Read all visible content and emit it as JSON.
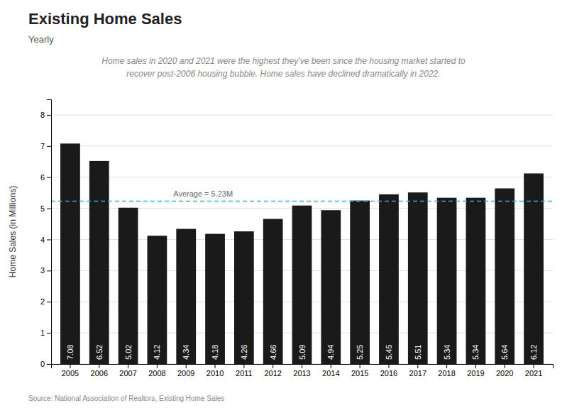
{
  "chart_data": {
    "type": "bar",
    "title": "Existing Home Sales",
    "subtitle": "Yearly",
    "annotations": [
      "Home sales in 2020 and 2021 were the highest they’ve been since the housing market started to",
      "recover post-2006 housing bubble. Home sales have declined dramatically in 2022."
    ],
    "source": "Source:  National Association of Realtors, Existing Home Sales",
    "categories": [
      "2005",
      "2006",
      "2007",
      "2008",
      "2009",
      "2010",
      "2011",
      "2012",
      "2013",
      "2014",
      "2015",
      "2016",
      "2017",
      "2018",
      "2019",
      "2020",
      "2021"
    ],
    "values": [
      7.08,
      6.52,
      5.02,
      4.12,
      4.34,
      4.18,
      4.26,
      4.66,
      5.09,
      4.94,
      5.25,
      5.45,
      5.51,
      5.34,
      5.34,
      5.64,
      6.12
    ],
    "color": "#1a1a1a",
    "data_labels": true,
    "average": {
      "value": 5.23,
      "label": "Average = 5.23M",
      "color": "#2ab5c8"
    },
    "ylabel": "Home Sales (in Millions)",
    "ylim": [
      0,
      8.5
    ],
    "yticks": [
      0,
      1,
      2,
      3,
      4,
      5,
      6,
      7,
      8
    ],
    "grid": true
  }
}
